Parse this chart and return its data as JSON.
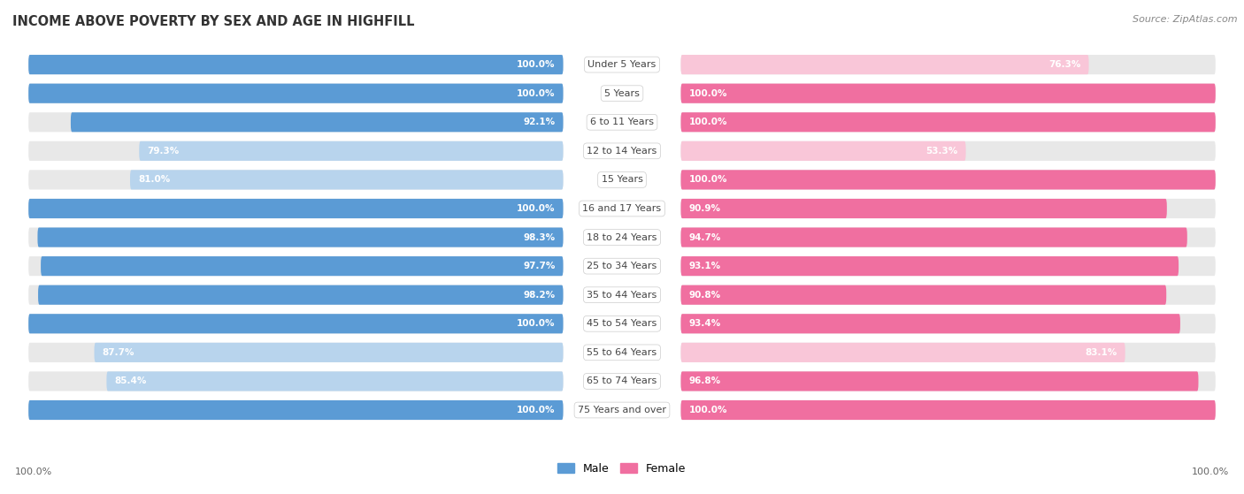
{
  "title": "INCOME ABOVE POVERTY BY SEX AND AGE IN HIGHFILL",
  "source": "Source: ZipAtlas.com",
  "categories": [
    "Under 5 Years",
    "5 Years",
    "6 to 11 Years",
    "12 to 14 Years",
    "15 Years",
    "16 and 17 Years",
    "18 to 24 Years",
    "25 to 34 Years",
    "35 to 44 Years",
    "45 to 54 Years",
    "55 to 64 Years",
    "65 to 74 Years",
    "75 Years and over"
  ],
  "male_values": [
    100.0,
    100.0,
    92.1,
    79.3,
    81.0,
    100.0,
    98.3,
    97.7,
    98.2,
    100.0,
    87.7,
    85.4,
    100.0
  ],
  "female_values": [
    76.3,
    100.0,
    100.0,
    53.3,
    100.0,
    90.9,
    94.7,
    93.1,
    90.8,
    93.4,
    83.1,
    96.8,
    100.0
  ],
  "male_color_full": "#5b9bd5",
  "male_color_light": "#b8d4ed",
  "female_color_full": "#f06fa0",
  "female_color_light": "#f9c6d8",
  "track_color": "#e8e8e8",
  "background_color": "#ffffff",
  "label_white": "#ffffff",
  "label_dark": "#555555",
  "center_label_color": "#444444",
  "max_val": 100.0
}
